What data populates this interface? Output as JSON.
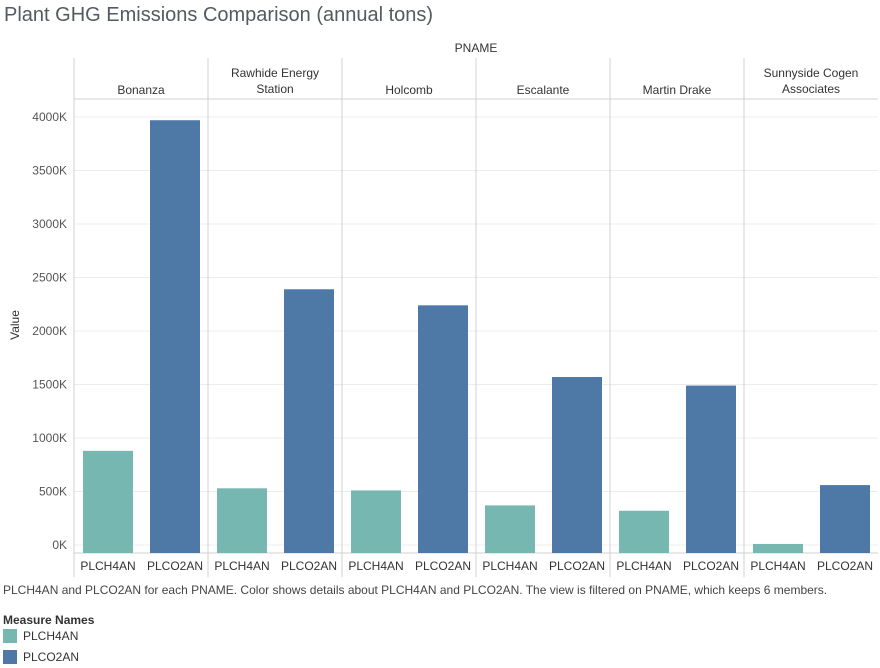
{
  "title": "Plant GHG Emissions Comparison (annual tons)",
  "caption": "PLCH4AN and PLCO2AN for each PNAME.  Color shows details about PLCH4AN and PLCO2AN. The view is filtered on PNAME, which keeps 6 members.",
  "legend": {
    "title": "Measure Names",
    "items": [
      {
        "label": "PLCH4AN",
        "color": "#76b7b2"
      },
      {
        "label": "PLCO2AN",
        "color": "#4e79a7"
      }
    ]
  },
  "chart_data": {
    "type": "bar",
    "column_header": "PNAME",
    "ylabel": "Value",
    "ylim": [
      0,
      4000000
    ],
    "yticks": [
      {
        "value": 0,
        "label": "0K"
      },
      {
        "value": 500000,
        "label": "500K"
      },
      {
        "value": 1000000,
        "label": "1000K"
      },
      {
        "value": 1500000,
        "label": "1500K"
      },
      {
        "value": 2000000,
        "label": "2000K"
      },
      {
        "value": 2500000,
        "label": "2500K"
      },
      {
        "value": 3000000,
        "label": "3000K"
      },
      {
        "value": 3500000,
        "label": "3500K"
      },
      {
        "value": 4000000,
        "label": "4000K"
      }
    ],
    "grid": true,
    "measures": [
      "PLCH4AN",
      "PLCO2AN"
    ],
    "colors": [
      "#76b7b2",
      "#4e79a7"
    ],
    "panels": [
      {
        "label": [
          "Bonanza"
        ],
        "values": [
          880000,
          3970000
        ]
      },
      {
        "label": [
          "Rawhide Energy",
          "Station"
        ],
        "values": [
          530000,
          2390000
        ]
      },
      {
        "label": [
          "Holcomb"
        ],
        "values": [
          510000,
          2240000
        ]
      },
      {
        "label": [
          "Escalante"
        ],
        "values": [
          370000,
          1570000
        ]
      },
      {
        "label": [
          "Martin Drake"
        ],
        "values": [
          320000,
          1490000
        ]
      },
      {
        "label": [
          "Sunnyside Cogen",
          "Associates"
        ],
        "values": [
          10000,
          560000
        ]
      }
    ]
  }
}
